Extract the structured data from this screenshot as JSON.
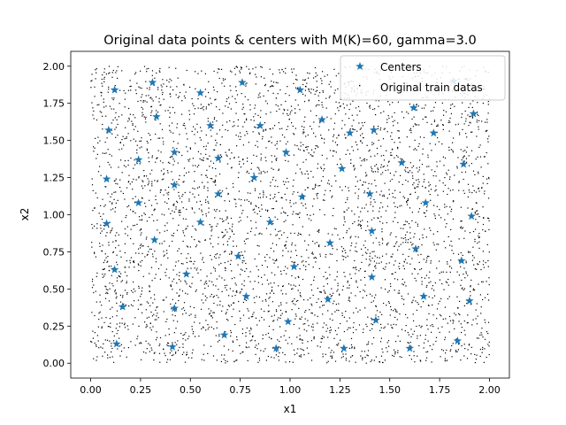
{
  "chart_data": {
    "type": "scatter",
    "title": "Original data points & centers with M(K)=60, gamma=3.0",
    "xlabel": "x1",
    "ylabel": "x2",
    "xlim": [
      -0.1,
      2.1
    ],
    "ylim": [
      -0.1,
      2.1
    ],
    "xticks": [
      "0.00",
      "0.25",
      "0.50",
      "0.75",
      "1.00",
      "1.25",
      "1.50",
      "1.75",
      "2.00"
    ],
    "yticks": [
      "0.00",
      "0.25",
      "0.50",
      "0.75",
      "1.00",
      "1.25",
      "1.50",
      "1.75",
      "2.00"
    ],
    "grid": false,
    "legend_position": "top-right",
    "series": [
      {
        "name": "Centers",
        "color": "#1f77b4",
        "marker": "star",
        "points": [
          [
            0.12,
            1.84
          ],
          [
            0.31,
            1.89
          ],
          [
            0.55,
            1.82
          ],
          [
            0.76,
            1.89
          ],
          [
            1.05,
            1.84
          ],
          [
            0.09,
            1.57
          ],
          [
            0.33,
            1.66
          ],
          [
            0.6,
            1.6
          ],
          [
            0.85,
            1.6
          ],
          [
            1.16,
            1.64
          ],
          [
            1.42,
            1.57
          ],
          [
            1.72,
            1.55
          ],
          [
            1.92,
            1.68
          ],
          [
            0.24,
            1.37
          ],
          [
            0.42,
            1.42
          ],
          [
            0.64,
            1.38
          ],
          [
            0.98,
            1.42
          ],
          [
            1.26,
            1.31
          ],
          [
            1.56,
            1.35
          ],
          [
            1.87,
            1.34
          ],
          [
            0.08,
            1.24
          ],
          [
            0.42,
            1.2
          ],
          [
            0.82,
            1.25
          ],
          [
            1.4,
            1.14
          ],
          [
            0.64,
            1.14
          ],
          [
            1.06,
            1.12
          ],
          [
            1.68,
            1.08
          ],
          [
            0.24,
            1.08
          ],
          [
            0.08,
            0.94
          ],
          [
            0.55,
            0.95
          ],
          [
            0.9,
            0.95
          ],
          [
            1.91,
            0.99
          ],
          [
            1.41,
            0.89
          ],
          [
            0.32,
            0.83
          ],
          [
            1.2,
            0.81
          ],
          [
            1.63,
            0.77
          ],
          [
            0.74,
            0.72
          ],
          [
            1.86,
            0.69
          ],
          [
            0.12,
            0.63
          ],
          [
            1.02,
            0.65
          ],
          [
            0.48,
            0.6
          ],
          [
            1.41,
            0.58
          ],
          [
            0.78,
            0.45
          ],
          [
            1.19,
            0.43
          ],
          [
            1.67,
            0.45
          ],
          [
            1.9,
            0.42
          ],
          [
            0.16,
            0.38
          ],
          [
            0.42,
            0.37
          ],
          [
            0.99,
            0.28
          ],
          [
            1.43,
            0.29
          ],
          [
            0.67,
            0.19
          ],
          [
            1.84,
            0.15
          ],
          [
            0.13,
            0.13
          ],
          [
            0.41,
            0.11
          ],
          [
            0.93,
            0.1
          ],
          [
            1.27,
            0.1
          ],
          [
            1.6,
            0.1
          ],
          [
            1.82,
            1.9
          ],
          [
            1.62,
            1.72
          ],
          [
            1.3,
            1.55
          ]
        ]
      },
      {
        "name": "Original train datas",
        "color": "#000000",
        "marker": "pixel",
        "count": 4000,
        "distribution": "uniform over [0, 2] x [0, 2]"
      }
    ]
  }
}
